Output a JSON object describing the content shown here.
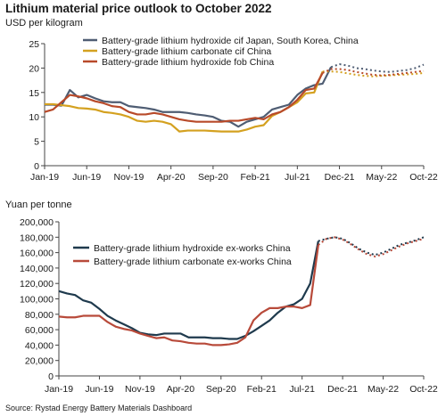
{
  "title": "Lithium material price outlook to October 2022",
  "source": "Source: Rystad Energy Battery Materials Dashboard",
  "colors": {
    "hydroxide_cif": "#4f5d73",
    "carbonate_cif": "#d4a120",
    "hydroxide_fob": "#b84a2a",
    "hydroxide_exworks": "#1f3a4d",
    "carbonate_exworks": "#b84a3a"
  },
  "chart_data": [
    {
      "type": "line",
      "title": "Lithium material price outlook to October 2022",
      "ylabel": "USD per kilogram",
      "xlabel": "",
      "x_tick_labels": [
        "Jan-19",
        "Jun-19",
        "Nov-19",
        "Apr-20",
        "Sep-20",
        "Feb-21",
        "Jul-21",
        "Dec-21",
        "May-22",
        "Oct-22"
      ],
      "y_tick_labels": [
        "0",
        "5",
        "10",
        "15",
        "20",
        "25"
      ],
      "ylim": [
        0,
        25
      ],
      "legend_position": "top-center",
      "grid": false,
      "x_months": [
        0,
        1,
        2,
        3,
        4,
        5,
        6,
        7,
        8,
        9,
        10,
        11,
        12,
        13,
        14,
        15,
        16,
        17,
        18,
        19,
        20,
        21,
        22,
        23,
        24,
        25,
        26,
        27,
        28,
        29,
        30,
        31,
        32,
        33,
        34,
        35,
        36,
        37,
        38,
        39,
        40,
        41,
        42,
        43,
        44,
        45
      ],
      "series": [
        {
          "name": "Battery-grade lithium hydroxide cif Japan, South Korea, China",
          "color": "#4f5d73",
          "values": [
            12.5,
            12.5,
            12.3,
            15.5,
            14.0,
            14.5,
            13.8,
            13.2,
            13.0,
            13.0,
            12.2,
            12.0,
            11.8,
            11.5,
            11.0,
            11.0,
            11.0,
            10.8,
            10.5,
            10.3,
            10.0,
            9.2,
            9.0,
            8.0,
            9.0,
            9.5,
            10.0,
            11.5,
            12.0,
            12.5,
            14.5,
            15.8,
            16.5,
            16.8,
            20.2,
            20.8,
            20.5,
            20.0,
            19.8,
            19.5,
            19.3,
            19.2,
            19.4,
            19.6,
            20.0,
            20.7
          ],
          "forecast_from_index": 34
        },
        {
          "name": "Battery-grade lithium carbonate cif China",
          "color": "#d4a120",
          "values": [
            12.6,
            12.6,
            12.4,
            12.2,
            11.8,
            11.7,
            11.5,
            11.0,
            10.8,
            10.5,
            10.0,
            9.2,
            9.0,
            9.2,
            9.0,
            8.5,
            7.0,
            7.2,
            7.2,
            7.2,
            7.1,
            7.0,
            7.0,
            7.0,
            7.4,
            8.0,
            8.3,
            10.2,
            11.0,
            12.0,
            13.0,
            14.8,
            15.0,
            19.3,
            19.3,
            19.2,
            18.9,
            18.6,
            18.4,
            18.3,
            18.4,
            18.5,
            18.6,
            18.7,
            18.8,
            19.0
          ],
          "forecast_from_index": 33
        },
        {
          "name": "Battery-grade lithium hydroxide fob China",
          "color": "#b84a2a",
          "values": [
            11.0,
            11.5,
            13.0,
            14.5,
            14.2,
            13.8,
            13.2,
            12.8,
            12.2,
            12.0,
            11.0,
            10.5,
            10.5,
            10.8,
            10.5,
            10.0,
            9.5,
            9.2,
            9.0,
            9.0,
            9.0,
            9.0,
            9.2,
            9.2,
            9.5,
            9.8,
            9.5,
            10.5,
            11.0,
            12.0,
            13.5,
            15.5,
            15.8,
            19.0,
            19.8,
            19.8,
            19.6,
            19.2,
            18.9,
            18.6,
            18.5,
            18.6,
            18.8,
            19.0,
            19.2,
            19.4
          ],
          "forecast_from_index": 33
        }
      ]
    },
    {
      "type": "line",
      "ylabel": "Yuan per tonne",
      "xlabel": "",
      "x_tick_labels": [
        "Jan-19",
        "Jun-19",
        "Nov-19",
        "Apr-20",
        "Sep-20",
        "Feb-21",
        "Jul-21",
        "Dec-21",
        "May-22",
        "Oct-22"
      ],
      "y_tick_labels": [
        "0",
        "20,000",
        "40,000",
        "60,000",
        "80,000",
        "100,000",
        "120,000",
        "140,000",
        "160,000",
        "180,000",
        "200,000"
      ],
      "ylim": [
        0,
        200000
      ],
      "legend_position": "top-left",
      "grid": false,
      "x_months": [
        0,
        1,
        2,
        3,
        4,
        5,
        6,
        7,
        8,
        9,
        10,
        11,
        12,
        13,
        14,
        15,
        16,
        17,
        18,
        19,
        20,
        21,
        22,
        23,
        24,
        25,
        26,
        27,
        28,
        29,
        30,
        31,
        32,
        33,
        34,
        35,
        36,
        37,
        38,
        39,
        40,
        41,
        42,
        43,
        44,
        45
      ],
      "series": [
        {
          "name": "Battery-grade lithium hydroxide ex-works China",
          "color": "#1f3a4d",
          "values": [
            110000,
            107000,
            105000,
            98000,
            95000,
            87000,
            78000,
            72000,
            67000,
            62000,
            56000,
            54000,
            53000,
            55000,
            55000,
            55000,
            50000,
            50000,
            50000,
            49000,
            49000,
            48000,
            48000,
            52000,
            58000,
            65000,
            72000,
            82000,
            90000,
            93000,
            100000,
            120000,
            175000,
            178000,
            180000,
            178000,
            172000,
            165000,
            160000,
            157000,
            160000,
            165000,
            170000,
            173000,
            176000,
            180000
          ],
          "forecast_from_index": 32
        },
        {
          "name": "Battery-grade lithium carbonate ex-works China",
          "color": "#b84a3a",
          "values": [
            77000,
            76000,
            76000,
            78000,
            78000,
            78000,
            70000,
            64000,
            61000,
            59000,
            55000,
            52000,
            49000,
            50000,
            46000,
            45000,
            43000,
            42000,
            42000,
            40000,
            40000,
            41000,
            43000,
            50000,
            72000,
            82000,
            88000,
            88000,
            90000,
            90000,
            88000,
            92000,
            170000,
            178000,
            180000,
            177000,
            171000,
            164000,
            158000,
            155000,
            158000,
            163000,
            168000,
            172000,
            175000,
            178000
          ],
          "forecast_from_index": 32
        }
      ]
    }
  ]
}
